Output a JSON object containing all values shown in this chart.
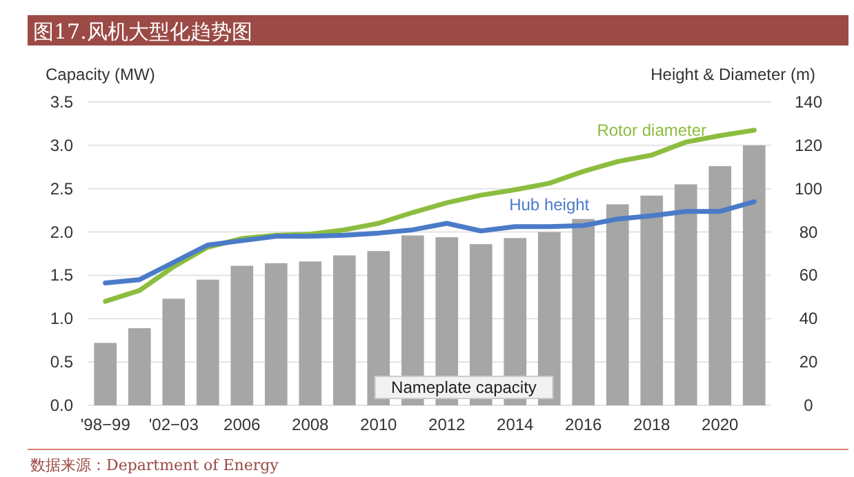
{
  "chart_data": {
    "type": "bar",
    "title": "图17.风机大型化趋势图",
    "ylabel": "Capacity (MW)",
    "y2label": "Height & Diameter (m)",
    "categories": [
      "'98−99",
      null,
      "'02−03",
      null,
      "2006",
      null,
      "2008",
      null,
      "2010",
      null,
      "2012",
      null,
      "2014",
      null,
      "2016",
      null,
      "2018",
      null,
      "2020",
      null
    ],
    "series": [
      {
        "name": "Nameplate capacity",
        "color": "#a6a6a6",
        "values": [
          0.72,
          0.89,
          1.23,
          1.45,
          1.61,
          1.64,
          1.66,
          1.73,
          1.78,
          1.96,
          1.94,
          1.86,
          1.93,
          2.0,
          2.15,
          2.32,
          2.42,
          2.55,
          2.76,
          3.0
        ]
      },
      {
        "name": "Rotor diameter",
        "type": "line",
        "axis": "y2",
        "color": "#8cbd3f",
        "values": [
          48,
          53,
          64,
          73,
          77,
          78.5,
          79,
          81,
          84,
          89,
          93.5,
          97,
          99.5,
          102.5,
          108,
          112.5,
          115.5,
          121.5,
          124.5,
          127
        ]
      },
      {
        "name": "Hub height",
        "type": "line",
        "axis": "y2",
        "color": "#4a7bc8",
        "values": [
          56.5,
          58,
          66,
          74,
          76,
          78,
          78,
          78.5,
          79.5,
          81,
          84,
          80.5,
          82.5,
          82.5,
          83,
          86,
          87.5,
          89.5,
          89.5,
          94
        ]
      }
    ],
    "ylim": [
      0,
      3.5
    ],
    "yticks": [
      {
        "value": 0,
        "label": "0.0"
      },
      {
        "value": 0.5,
        "label": "0.5"
      },
      {
        "value": 1,
        "label": "1.0"
      },
      {
        "value": 1.5,
        "label": "1.5"
      },
      {
        "value": 2,
        "label": "2.0"
      },
      {
        "value": 2.5,
        "label": "2.5"
      },
      {
        "value": 3,
        "label": "3.0"
      },
      {
        "value": 3.5,
        "label": "3.5"
      }
    ],
    "y2lim": [
      0,
      140
    ],
    "y2ticks": [
      0,
      20,
      40,
      60,
      80,
      100,
      120,
      140
    ],
    "grid": "y",
    "annotations": [
      "数据来源：Department of Energy"
    ]
  }
}
